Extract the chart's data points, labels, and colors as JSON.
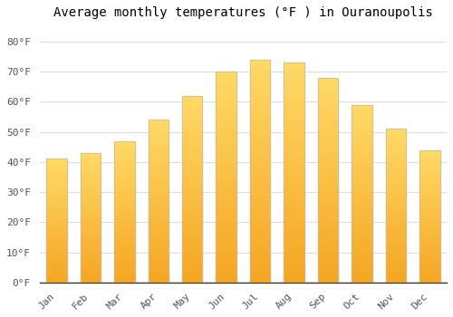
{
  "title": "Average monthly temperatures (°F ) in Ouranoupolis",
  "months": [
    "Jan",
    "Feb",
    "Mar",
    "Apr",
    "May",
    "Jun",
    "Jul",
    "Aug",
    "Sep",
    "Oct",
    "Nov",
    "Dec"
  ],
  "values": [
    41,
    43,
    47,
    54,
    62,
    70,
    74,
    73,
    68,
    59,
    51,
    44
  ],
  "bar_color_bottom": "#F5A623",
  "bar_color_top": "#FFD966",
  "bar_edge_color": "#BBBBBB",
  "background_color": "#FFFFFF",
  "grid_color": "#DDDDDD",
  "title_fontsize": 10,
  "tick_fontsize": 8,
  "ylabel_ticks": [
    0,
    10,
    20,
    30,
    40,
    50,
    60,
    70,
    80
  ],
  "ylim": [
    0,
    85
  ],
  "font_family": "monospace",
  "bar_width": 0.6,
  "n_gradient_steps": 50
}
